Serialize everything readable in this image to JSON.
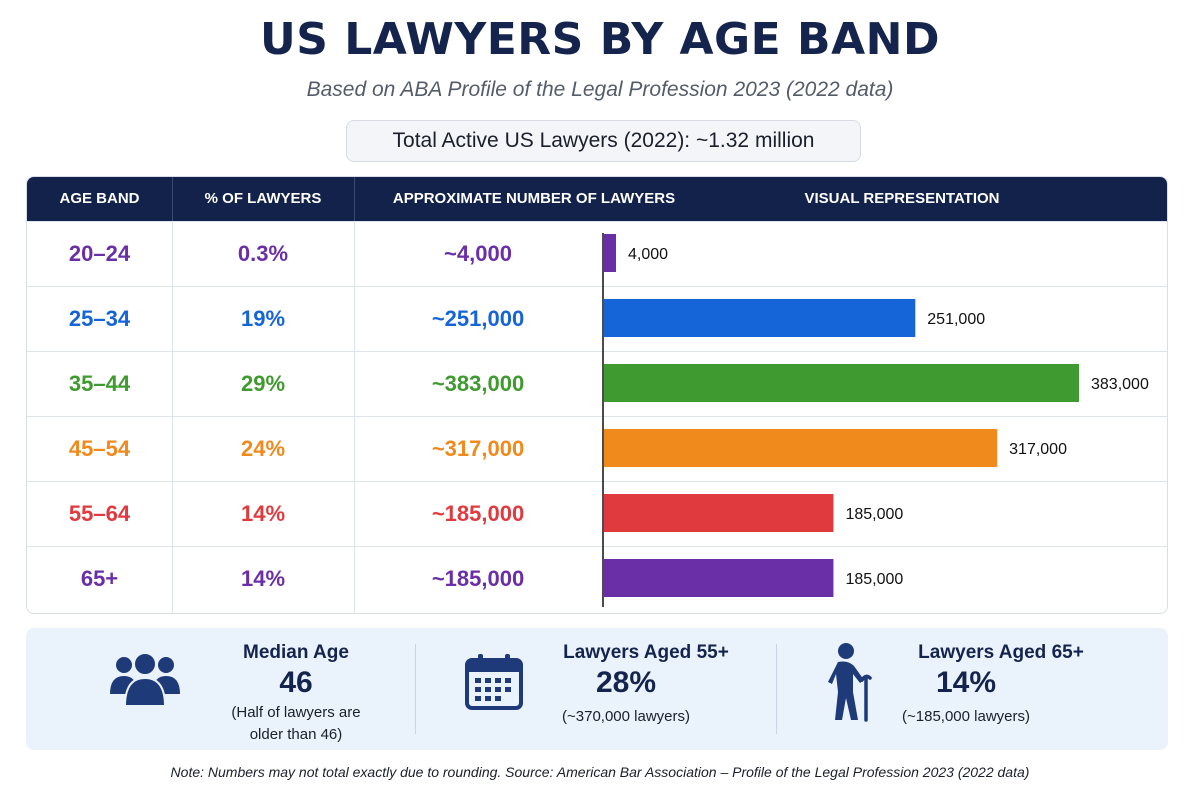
{
  "title": "US LAWYERS BY AGE BAND",
  "subtitle": "Based on ABA Profile of the Legal Profession 2023 (2022 data)",
  "total": "Total Active US Lawyers (2022): ~1.32 million",
  "table": {
    "headers": [
      "AGE BAND",
      "% OF LAWYERS",
      "APPROXIMATE NUMBER OF LAWYERS",
      "VISUAL REPRESENTATION"
    ],
    "rows": [
      {
        "band": "20–24",
        "pct": "0.3%",
        "approx": "~4,000",
        "color": "#6a2fa6"
      },
      {
        "band": "25–34",
        "pct": "19%",
        "approx": "~251,000",
        "color": "#1565d8"
      },
      {
        "band": "35–44",
        "pct": "29%",
        "approx": "~383,000",
        "color": "#3f9a2f"
      },
      {
        "band": "45–54",
        "pct": "24%",
        "approx": "~317,000",
        "color": "#f08a1c"
      },
      {
        "band": "55–64",
        "pct": "14%",
        "approx": "~185,000",
        "color": "#e03a3e"
      },
      {
        "band": "65+",
        "pct": "14%",
        "approx": "~185,000",
        "color": "#6a2fa6"
      }
    ]
  },
  "chart_data": {
    "type": "bar",
    "orientation": "horizontal",
    "categories": [
      "20–24",
      "25–34",
      "35–44",
      "45–54",
      "55–64",
      "65+"
    ],
    "values": [
      4000,
      251000,
      383000,
      317000,
      185000,
      185000
    ],
    "data_labels": [
      "4,000",
      "251,000",
      "383,000",
      "317,000",
      "185,000",
      "185,000"
    ],
    "colors": [
      "#6a2fa6",
      "#1565d8",
      "#3f9a2f",
      "#f08a1c",
      "#e03a3e",
      "#6a2fa6"
    ],
    "title": "VISUAL REPRESENTATION",
    "xlim": [
      0,
      400000
    ],
    "grid": false
  },
  "stats": [
    {
      "icon": "people-group-icon",
      "title": "Median Age",
      "value": "46",
      "note_line1": "(Half of lawyers are",
      "note_line2": "older than 46)"
    },
    {
      "icon": "calendar-icon",
      "title": "Lawyers Aged 55+",
      "value": "28%",
      "note_line1": "(~370,000 lawyers)"
    },
    {
      "icon": "elderly-person-cane-icon",
      "title": "Lawyers Aged 65+",
      "value": "14%",
      "note_line1": "(~185,000 lawyers)"
    }
  ],
  "footnote": "Note: Numbers may not total exactly due to rounding. Source: American Bar Association – Profile of the Legal Profession 2023 (2022 data)"
}
